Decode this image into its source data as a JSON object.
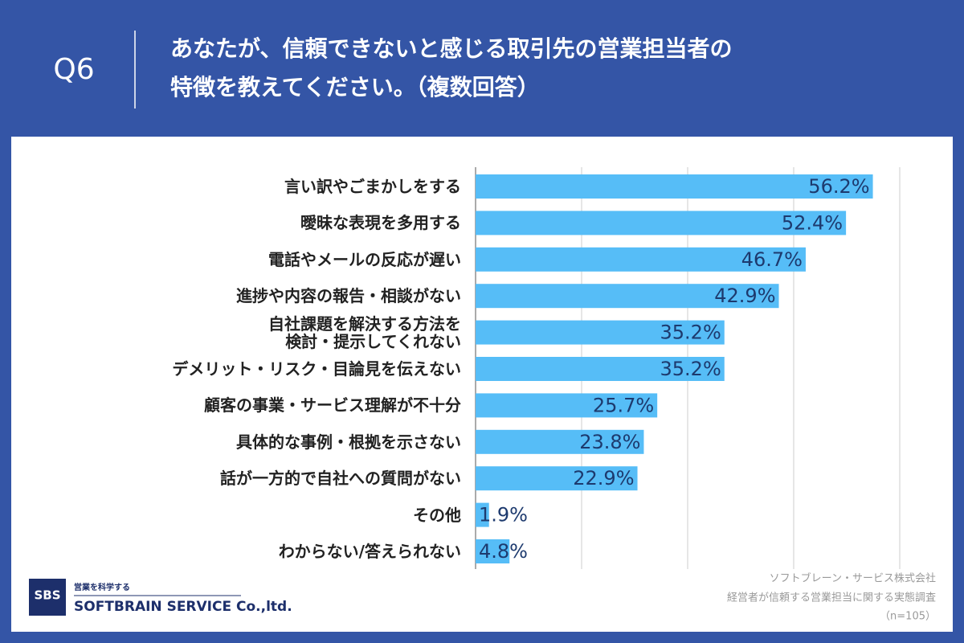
{
  "header": {
    "question": "Q6",
    "title": [
      "あなたが、信頼できないと感じる取引先の営業担当者の",
      "特徴を教えてください。（複数回答）"
    ]
  },
  "chart_data": {
    "type": "bar",
    "orientation": "horizontal",
    "categories": [
      "言い訳やごまかしをする",
      "曖昧な表現を多用する",
      "電話やメールの反応が遅い",
      "進捗や内容の報告・相談がない",
      "自社課題を解決する方法を\n検討・提示してくれない",
      "デメリット・リスク・目論見を伝えない",
      "顧客の事業・サービス理解が不十分",
      "具体的な事例・根拠を示さない",
      "話が一方的で自社への質問がない",
      "その他",
      "わからない/答えられない"
    ],
    "values": [
      56.2,
      52.4,
      46.7,
      42.9,
      35.2,
      35.2,
      25.7,
      23.8,
      22.9,
      1.9,
      4.8
    ],
    "value_labels": [
      "56.2%",
      "52.4%",
      "46.7%",
      "42.9%",
      "35.2%",
      "35.2%",
      "25.7%",
      "23.8%",
      "22.9%",
      "1.9%",
      "4.8%"
    ],
    "color": "#56bdf7",
    "xlim": [
      0,
      60
    ],
    "xticks": [
      0,
      15,
      30,
      45,
      60
    ],
    "grid": true
  },
  "footer": {
    "logo": {
      "mark": "SBS",
      "tagline": "営業を科学する",
      "company": "SOFTBRAIN SERVICE Co.,ltd."
    },
    "source": [
      "ソフトブレーン・サービス株式会社",
      "経営者が信頼する営業担当に関する実態調査",
      "（n=105）"
    ]
  }
}
